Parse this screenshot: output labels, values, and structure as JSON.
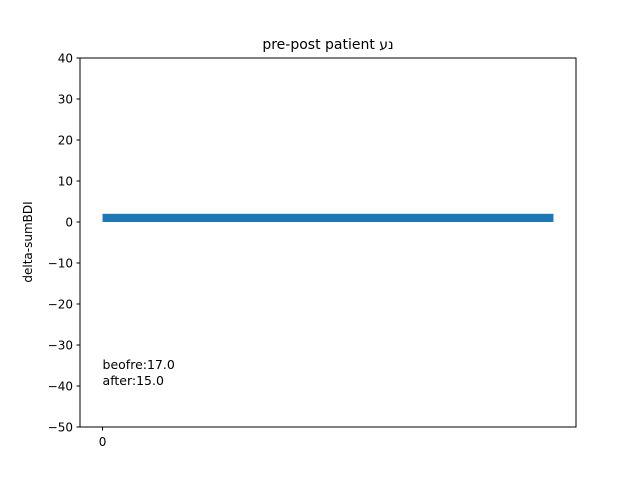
{
  "chart_data": {
    "type": "bar",
    "title": "pre-post patient נע",
    "xlabel": "",
    "ylabel": "delta-sumBDI",
    "categories": [
      "0"
    ],
    "values": [
      2
    ],
    "bar_bottom": 0,
    "xlim": [
      -0.05,
      1.05
    ],
    "ylim": [
      -50,
      40
    ],
    "yticks": [
      -50,
      -40,
      -30,
      -20,
      -10,
      0,
      10,
      20,
      30,
      40
    ],
    "xticks": [
      0
    ],
    "grid": false,
    "bar_color": "#1f77b4",
    "annotations": [
      "beofre:17.0",
      "after:15.0"
    ]
  }
}
